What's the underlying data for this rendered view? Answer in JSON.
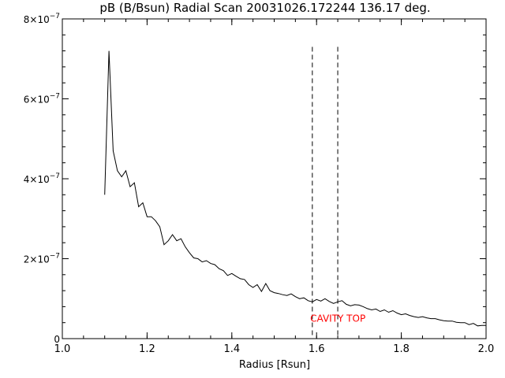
{
  "chart_data": {
    "type": "line",
    "title": "pB (B/Bsun) Radial Scan 20031026.172244 136.17 deg.",
    "xlabel": "Radius [Rsun]",
    "ylabel": "",
    "xlim": [
      1.0,
      2.0
    ],
    "ylim": [
      0,
      8e-07
    ],
    "x_ticks": [
      {
        "value": 1.0,
        "label": "1.0"
      },
      {
        "value": 1.2,
        "label": "1.2"
      },
      {
        "value": 1.4,
        "label": "1.4"
      },
      {
        "value": 1.6,
        "label": "1.6"
      },
      {
        "value": 1.8,
        "label": "1.8"
      },
      {
        "value": 2.0,
        "label": "2.0"
      }
    ],
    "y_ticks": [
      {
        "value": 0,
        "mantissa": "0",
        "exponent": ""
      },
      {
        "value": 2e-07,
        "mantissa": "2×10",
        "exponent": "−7"
      },
      {
        "value": 4e-07,
        "mantissa": "4×10",
        "exponent": "−7"
      },
      {
        "value": 6e-07,
        "mantissa": "6×10",
        "exponent": "−7"
      },
      {
        "value": 8e-07,
        "mantissa": "8×10",
        "exponent": "−7"
      }
    ],
    "series": [
      {
        "color": "#000000",
        "x": [
          1.1,
          1.11,
          1.12,
          1.13,
          1.14,
          1.15,
          1.16,
          1.17,
          1.18,
          1.19,
          1.2,
          1.21,
          1.22,
          1.23,
          1.24,
          1.25,
          1.26,
          1.27,
          1.28,
          1.29,
          1.3,
          1.31,
          1.32,
          1.33,
          1.34,
          1.35,
          1.36,
          1.37,
          1.38,
          1.39,
          1.4,
          1.41,
          1.42,
          1.43,
          1.44,
          1.45,
          1.46,
          1.47,
          1.48,
          1.49,
          1.5,
          1.51,
          1.52,
          1.53,
          1.54,
          1.55,
          1.56,
          1.57,
          1.58,
          1.59,
          1.6,
          1.61,
          1.62,
          1.63,
          1.64,
          1.65,
          1.66,
          1.67,
          1.68,
          1.69,
          1.7,
          1.71,
          1.72,
          1.73,
          1.74,
          1.75,
          1.76,
          1.77,
          1.78,
          1.79,
          1.8,
          1.81,
          1.82,
          1.83,
          1.84,
          1.85,
          1.86,
          1.87,
          1.88,
          1.89,
          1.9,
          1.91,
          1.92,
          1.93,
          1.94,
          1.95,
          1.96,
          1.97,
          1.98,
          1.99,
          2.0
        ],
        "y": [
          3.6e-07,
          7.2e-07,
          4.7e-07,
          4.2e-07,
          4.05e-07,
          4.2e-07,
          3.8e-07,
          3.9e-07,
          3.3e-07,
          3.4e-07,
          3.05e-07,
          3.05e-07,
          2.95e-07,
          2.8e-07,
          2.35e-07,
          2.45e-07,
          2.6e-07,
          2.45e-07,
          2.5e-07,
          2.3e-07,
          2.15e-07,
          2.02e-07,
          2e-07,
          1.92e-07,
          1.95e-07,
          1.88e-07,
          1.85e-07,
          1.75e-07,
          1.7e-07,
          1.58e-07,
          1.63e-07,
          1.56e-07,
          1.5e-07,
          1.48e-07,
          1.35e-07,
          1.28e-07,
          1.35e-07,
          1.18e-07,
          1.38e-07,
          1.2e-07,
          1.15e-07,
          1.13e-07,
          1.1e-07,
          1.08e-07,
          1.12e-07,
          1.05e-07,
          1e-07,
          1.02e-07,
          9.5e-08,
          9.2e-08,
          9.8e-08,
          9.4e-08,
          1e-07,
          9.3e-08,
          8.8e-08,
          9.2e-08,
          9.5e-08,
          8.6e-08,
          8.2e-08,
          8.5e-08,
          8.4e-08,
          8e-08,
          7.5e-08,
          7.2e-08,
          7.4e-08,
          6.8e-08,
          7.2e-08,
          6.6e-08,
          7e-08,
          6.4e-08,
          6e-08,
          6.2e-08,
          5.8e-08,
          5.5e-08,
          5.3e-08,
          5.5e-08,
          5.2e-08,
          5e-08,
          5e-08,
          4.7e-08,
          4.5e-08,
          4.4e-08,
          4.4e-08,
          4.1e-08,
          4e-08,
          4e-08,
          3.5e-08,
          3.8e-08,
          3.2e-08,
          3.3e-08,
          3.3e-08
        ]
      }
    ],
    "markers": [
      {
        "x": 1.59,
        "y_top": 7.3e-07,
        "style": "dashed",
        "color": "#000000"
      },
      {
        "x": 1.65,
        "y_top": 7.3e-07,
        "style": "dashed",
        "color": "#000000"
      }
    ],
    "annotations": [
      {
        "text": "CAVITY TOP",
        "x": 1.585,
        "y": 4.2e-08,
        "color": "#ff0000"
      }
    ],
    "grid": false
  }
}
